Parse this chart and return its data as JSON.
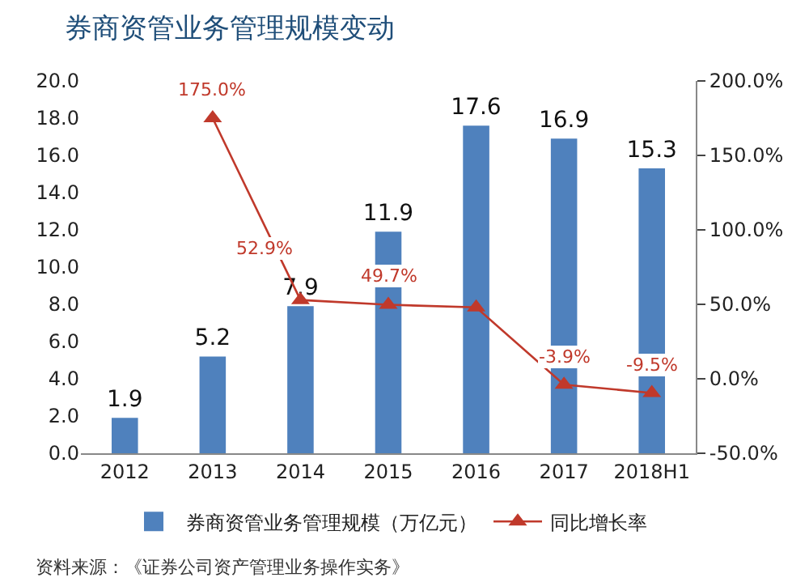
{
  "chart_data": {
    "type": "bar",
    "title": "券商资管业务管理规模变动",
    "categories": [
      "2012",
      "2013",
      "2014",
      "2015",
      "2016",
      "2017",
      "2018H1"
    ],
    "series": [
      {
        "name": "券商资管业务管理规模（万亿元）",
        "color": "#4f81bd",
        "values": [
          1.9,
          5.2,
          7.9,
          11.9,
          17.6,
          16.9,
          15.3
        ],
        "data_labels": true
      },
      {
        "name": "同比增长率",
        "type": "line",
        "axis": "y2",
        "color": "#c0392b",
        "marker": "triangle",
        "values": [
          null,
          175.0,
          52.9,
          49.7,
          48,
          -3.9,
          -9.5
        ],
        "value_labels": [
          null,
          "175.0%",
          "52.9%",
          "49.7%",
          null,
          "-3.9%",
          "-9.5%"
        ]
      }
    ],
    "ylim": [
      0,
      20
    ],
    "yticks": [
      {
        "value": 0,
        "label": "0.0"
      },
      {
        "value": 2,
        "label": "2.0"
      },
      {
        "value": 4,
        "label": "4.0"
      },
      {
        "value": 6,
        "label": "6.0"
      },
      {
        "value": 8,
        "label": "8.0"
      },
      {
        "value": 10,
        "label": "10.0"
      },
      {
        "value": 12,
        "label": "12.0"
      },
      {
        "value": 14,
        "label": "14.0"
      },
      {
        "value": 16,
        "label": "16.0"
      },
      {
        "value": 18,
        "label": "18.0"
      },
      {
        "value": 20,
        "label": "20.0"
      }
    ],
    "y2lim": [
      -50,
      200
    ],
    "y2ticks": [
      {
        "value": -50,
        "label": "-50.0%"
      },
      {
        "value": 0,
        "label": "0.0%"
      },
      {
        "value": 50,
        "label": "50.0%"
      },
      {
        "value": 100,
        "label": "100.0%"
      },
      {
        "value": 150,
        "label": "150.0%"
      },
      {
        "value": 200,
        "label": "200.0%"
      }
    ],
    "grid": false,
    "legend": "bottom",
    "annotations": [
      "资料来源：《证券公司资产管理业务操作实务》"
    ]
  }
}
